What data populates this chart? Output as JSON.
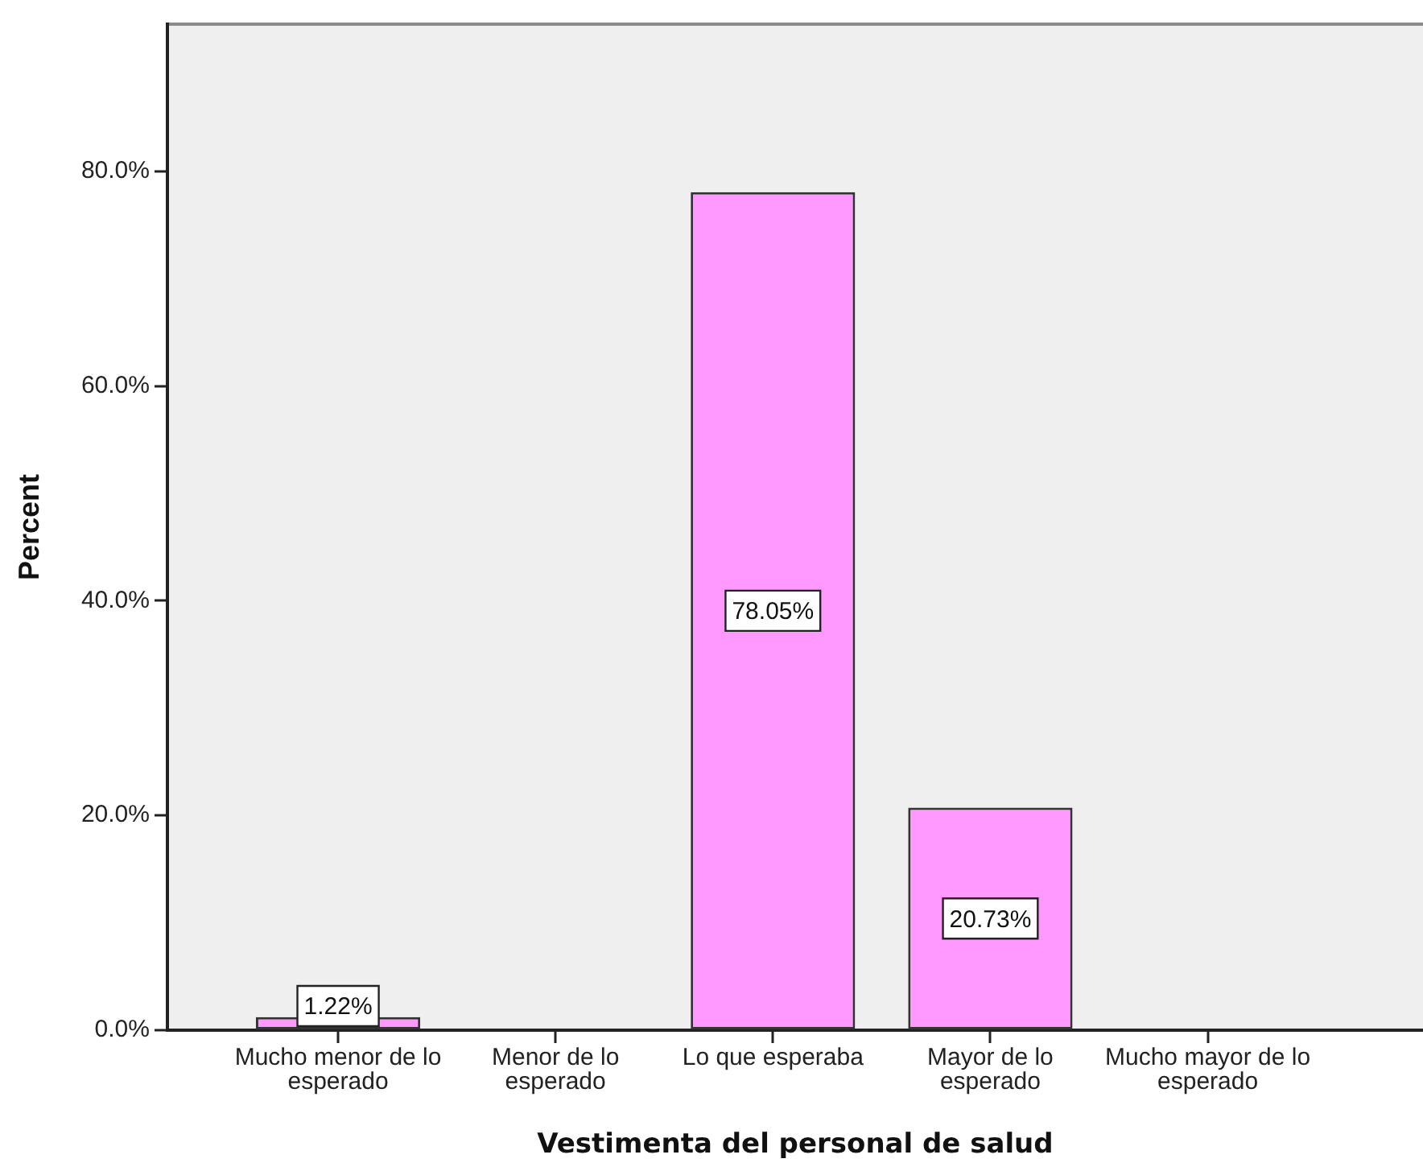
{
  "chart_data": {
    "type": "bar",
    "categories": [
      "Mucho menor de lo esperado",
      "Menor de lo esperado",
      "Lo que esperaba",
      "Mayor de lo esperado",
      "Mucho mayor de lo esperado"
    ],
    "values": [
      1.22,
      0,
      78.05,
      20.73,
      0
    ],
    "value_labels": [
      "1.22%",
      null,
      "78.05%",
      "20.73%",
      null
    ],
    "color": "#ff99ff",
    "xlabel": "Vestimenta del personal de salud",
    "ylabel": "Percent",
    "ylim": [
      0,
      93.7
    ],
    "yticks": [
      {
        "value": 0,
        "label": "0.0%"
      },
      {
        "value": 20,
        "label": "20.0%"
      },
      {
        "value": 40,
        "label": "40.0%"
      },
      {
        "value": 60,
        "label": "60.0%"
      },
      {
        "value": 80,
        "label": "80.0%"
      }
    ]
  }
}
